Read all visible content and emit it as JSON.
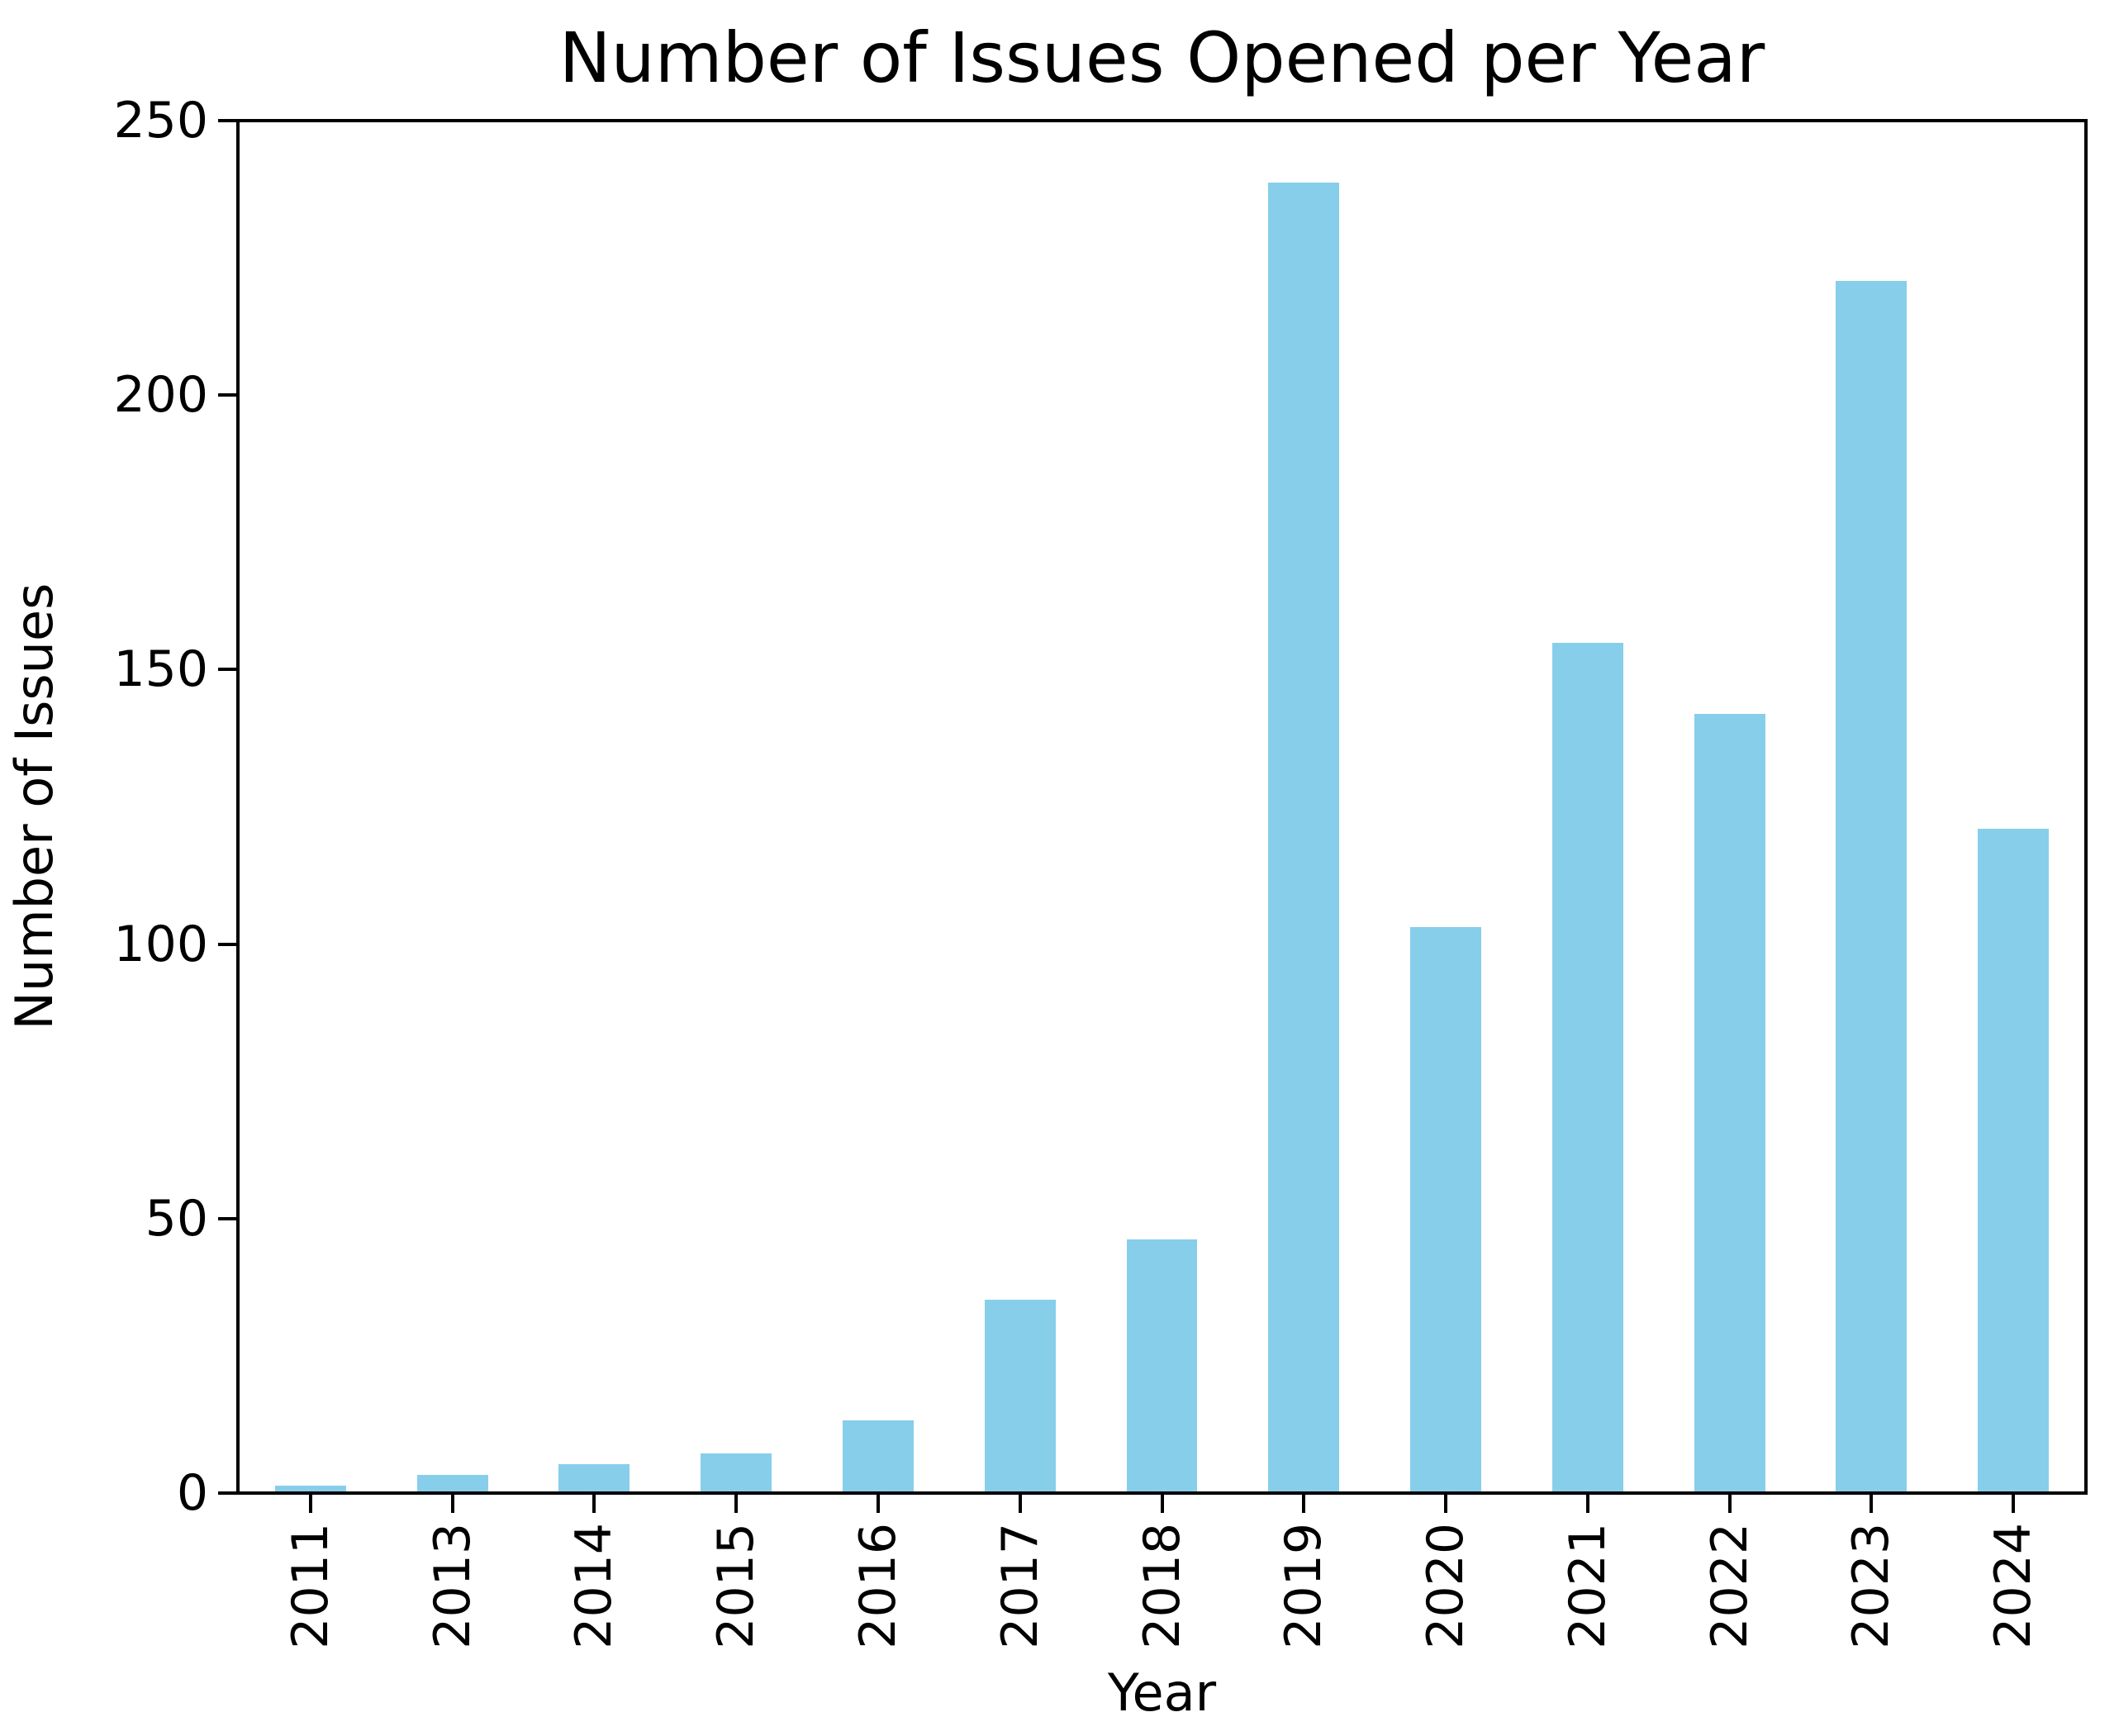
{
  "figure": {
    "background": "#ffffff"
  },
  "chart_data": {
    "type": "bar",
    "title": "Number of Issues Opened per Year",
    "xlabel": "Year",
    "ylabel": "Number of Issues",
    "categories": [
      "2011",
      "2013",
      "2014",
      "2015",
      "2016",
      "2017",
      "2018",
      "2019",
      "2020",
      "2021",
      "2022",
      "2023",
      "2024"
    ],
    "values": [
      1,
      3,
      5,
      7,
      13,
      35,
      46,
      239,
      103,
      155,
      142,
      221,
      121
    ],
    "ylim": [
      0,
      250
    ],
    "yticks": [
      0,
      50,
      100,
      150,
      200,
      250
    ],
    "bar_color": "#87CEEB",
    "bar_width_fraction": 0.5,
    "spine_color": "#000000",
    "text_color": "#000000",
    "grid": false,
    "legend": null,
    "x_tick_rotation_deg": 90
  }
}
